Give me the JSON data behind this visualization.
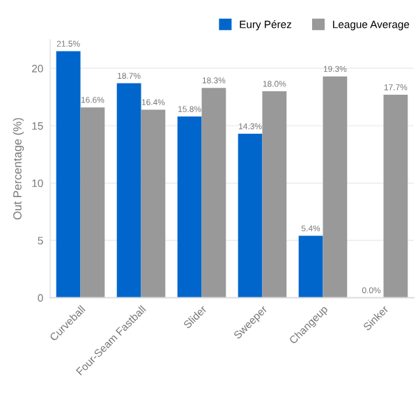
{
  "chart_data": {
    "type": "bar",
    "categories": [
      "Curveball",
      "Four-Seam Fastball",
      "Slider",
      "Sweeper",
      "Changeup",
      "Sinker"
    ],
    "ylabel": "Out Percentage (%)",
    "series": [
      {
        "name": "Eury Pérez",
        "color": "#0066cc",
        "values": [
          21.5,
          18.7,
          15.8,
          14.3,
          5.4,
          0.0
        ],
        "value_labels": [
          "21.5%",
          "18.7%",
          "15.8%",
          "14.3%",
          "5.4%",
          "0.0%"
        ]
      },
      {
        "name": "League Average",
        "color": "#999999",
        "values": [
          16.6,
          16.4,
          18.3,
          18.0,
          19.3,
          17.7
        ],
        "value_labels": [
          "16.6%",
          "16.4%",
          "18.3%",
          "18.0%",
          "19.3%",
          "17.7%"
        ]
      }
    ],
    "ylim": [
      0,
      22.5
    ],
    "yticks": [
      0,
      5,
      10,
      15,
      20
    ],
    "grid": "y",
    "legend": "top right"
  }
}
